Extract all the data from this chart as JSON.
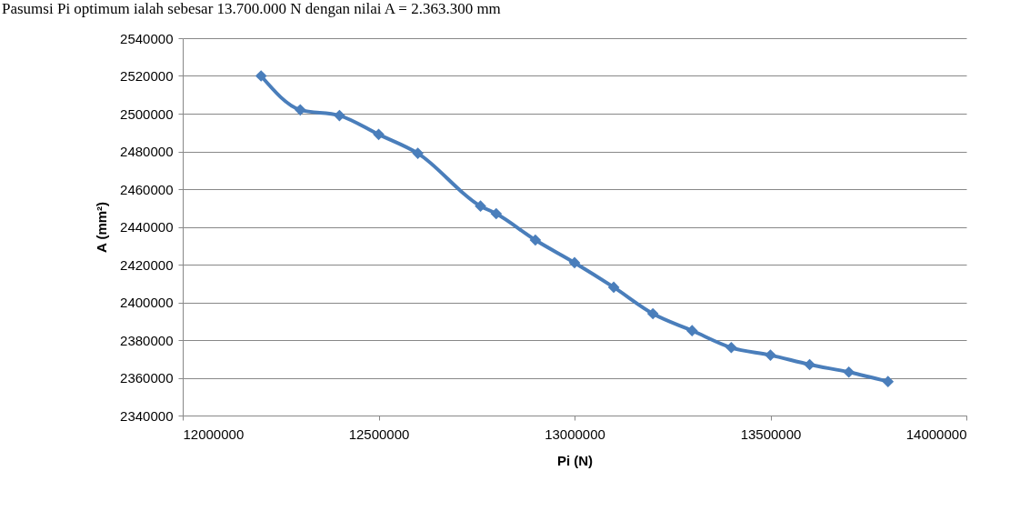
{
  "chart_data": {
    "type": "line",
    "title": "Pasumsi Pi optimum ialah sebesar 13.700.000 N dengan nilai A = 2.363.300 mm",
    "xlabel": "Pi (N)",
    "ylabel": "A (mm²)",
    "x": [
      12200000,
      12300000,
      12400000,
      12500000,
      12600000,
      12760000,
      12800000,
      12900000,
      13000000,
      13100000,
      13200000,
      13300000,
      13400000,
      13500000,
      13600000,
      13700000,
      13800000
    ],
    "series": [
      {
        "color": "#4a7ebb",
        "values": [
          2520000,
          2502000,
          2499000,
          2489000,
          2479000,
          2451000,
          2447000,
          2433000,
          2421000,
          2408000,
          2394000,
          2385000,
          2376000,
          2372000,
          2367000,
          2363000,
          2358000
        ]
      }
    ],
    "xlim": [
      12000000,
      14000000
    ],
    "xticks": [
      12000000,
      12500000,
      13000000,
      13500000,
      14000000
    ],
    "ylim": [
      2340000,
      2540000
    ],
    "yticks": [
      2340000,
      2360000,
      2380000,
      2400000,
      2420000,
      2440000,
      2460000,
      2480000,
      2500000,
      2520000,
      2540000
    ],
    "grid": "y",
    "marker": "diamond",
    "line_style": "solid",
    "legend": false
  }
}
